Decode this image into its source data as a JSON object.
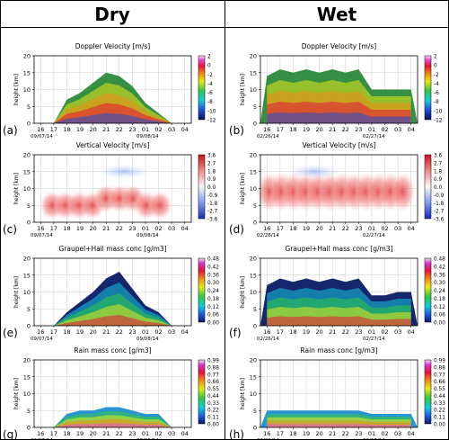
{
  "columns": {
    "dry": "Dry",
    "wet": "Wet"
  },
  "panel_titles": {
    "doppler": "Doppler Velocity [m/s]",
    "vertical": "Vertical Velocity [m/s]",
    "graupel": "Graupel+Hail mass conc [g/m3]",
    "rain": "Rain mass conc [g/m3]"
  },
  "ylabel": "height [km]",
  "x_ticks": [
    "16",
    "17",
    "18",
    "19",
    "20",
    "21",
    "22",
    "23",
    "01",
    "02",
    "03",
    "04"
  ],
  "y_ticks": [
    "0",
    "5",
    "10",
    "15",
    "20"
  ],
  "dates": {
    "dry_start": "09/07/14",
    "dry_end": "09/08/14",
    "wet_start": "02/26/14",
    "wet_end": "02/27/14"
  },
  "colorbars": {
    "doppler": [
      "2",
      "0",
      "-2",
      "-4",
      "-6",
      "-8",
      "-10",
      "-12"
    ],
    "vertical": [
      "3.6",
      "2.7",
      "1.8",
      "0.9",
      "0.0",
      "-0.9",
      "-1.8",
      "-2.7",
      "-3.6"
    ],
    "graupel": [
      "0.48",
      "0.42",
      "0.36",
      "0.30",
      "0.24",
      "0.18",
      "0.12",
      "0.06",
      "0.00"
    ],
    "graupel_wet": [
      "0.48",
      "0.42",
      "0.36",
      "0.30",
      "0.24",
      "0.18",
      "0.12",
      "0.06",
      "0.00"
    ],
    "rain_dry": [
      "0.99",
      "0.88",
      "0.77",
      "0.66",
      "0.55",
      "0.44",
      "0.33",
      "0.22",
      "0.11",
      "0.00"
    ],
    "rain_wet": [
      "0.99",
      "0.88",
      "0.77",
      "0.66",
      "0.55",
      "0.44",
      "0.33",
      "0.22",
      "0.11",
      "0.00"
    ]
  },
  "chart_data": [
    {
      "panel": "(a)",
      "type": "heatmap",
      "title": "Doppler Velocity [m/s]",
      "ylabel": "height [km]",
      "ylim": [
        0,
        20
      ],
      "x_ticks": [
        "16",
        "17",
        "18",
        "19",
        "20",
        "21",
        "22",
        "23",
        "01",
        "02",
        "03",
        "04"
      ],
      "colorbar_range": [
        -12,
        2
      ],
      "echo_top_km": [
        0,
        0,
        7,
        9,
        12,
        15,
        14,
        11,
        6,
        3,
        0,
        0
      ]
    },
    {
      "panel": "(b)",
      "type": "heatmap",
      "title": "Doppler Velocity [m/s]",
      "ylabel": "height [km]",
      "ylim": [
        0,
        20
      ],
      "x_ticks": [
        "16",
        "17",
        "18",
        "19",
        "20",
        "21",
        "22",
        "23",
        "01",
        "02",
        "03",
        "04"
      ],
      "colorbar_range": [
        -12,
        2
      ],
      "echo_top_km": [
        14,
        16,
        15,
        16,
        15,
        16,
        15,
        16,
        10,
        10,
        10,
        10
      ]
    },
    {
      "panel": "(c)",
      "type": "heatmap",
      "title": "Vertical Velocity [m/s]",
      "ylabel": "height [km]",
      "ylim": [
        0,
        20
      ],
      "x_ticks": [
        "16",
        "17",
        "18",
        "19",
        "20",
        "21",
        "22",
        "23",
        "01",
        "02",
        "03",
        "04"
      ],
      "colorbar_range": [
        -3.6,
        3.6
      ]
    },
    {
      "panel": "(d)",
      "type": "heatmap",
      "title": "Vertical Velocity [m/s]",
      "ylabel": "height [km]",
      "ylim": [
        0,
        20
      ],
      "x_ticks": [
        "16",
        "17",
        "18",
        "19",
        "20",
        "21",
        "22",
        "23",
        "01",
        "02",
        "03",
        "04"
      ],
      "colorbar_range": [
        -3.6,
        3.6
      ]
    },
    {
      "panel": "(e)",
      "type": "heatmap",
      "title": "Graupel+Hail mass conc [g/m3]",
      "ylabel": "height [km]",
      "ylim": [
        0,
        20
      ],
      "x_ticks": [
        "16",
        "17",
        "18",
        "19",
        "20",
        "21",
        "22",
        "23",
        "01",
        "02",
        "03",
        "04"
      ],
      "colorbar_range": [
        0,
        0.48
      ],
      "echo_top_km": [
        0,
        0,
        4,
        7,
        10,
        14,
        16,
        11,
        6,
        4,
        0,
        0
      ]
    },
    {
      "panel": "(f)",
      "type": "heatmap",
      "title": "Graupel+Hail mass conc [g/m3]",
      "ylabel": "height [km]",
      "ylim": [
        0,
        20
      ],
      "x_ticks": [
        "16",
        "17",
        "18",
        "19",
        "20",
        "21",
        "22",
        "23",
        "01",
        "02",
        "03",
        "04"
      ],
      "colorbar_range": [
        0,
        0.48
      ],
      "echo_top_km": [
        12,
        14,
        13,
        14,
        13,
        14,
        13,
        14,
        9,
        9,
        10,
        10
      ]
    },
    {
      "panel": "(g)",
      "type": "heatmap",
      "title": "Rain mass conc [g/m3]",
      "ylabel": "height [km]",
      "ylim": [
        0,
        20
      ],
      "x_ticks": [
        "16",
        "17",
        "18",
        "19",
        "20",
        "21",
        "22",
        "23",
        "01",
        "02",
        "03",
        "04"
      ],
      "colorbar_range": [
        0,
        0.99
      ],
      "echo_top_km": [
        0,
        0,
        4,
        5,
        5,
        6,
        6,
        5,
        4,
        4,
        0,
        0
      ]
    },
    {
      "panel": "(h)",
      "type": "heatmap",
      "title": "Rain mass conc [g/m3]",
      "ylabel": "height [km]",
      "ylim": [
        0,
        20
      ],
      "x_ticks": [
        "16",
        "17",
        "18",
        "19",
        "20",
        "21",
        "22",
        "23",
        "01",
        "02",
        "03",
        "04"
      ],
      "colorbar_range": [
        0,
        0.99
      ],
      "echo_top_km": [
        5,
        5,
        5,
        5,
        5,
        5,
        5,
        5,
        4,
        4,
        4,
        4
      ]
    }
  ]
}
